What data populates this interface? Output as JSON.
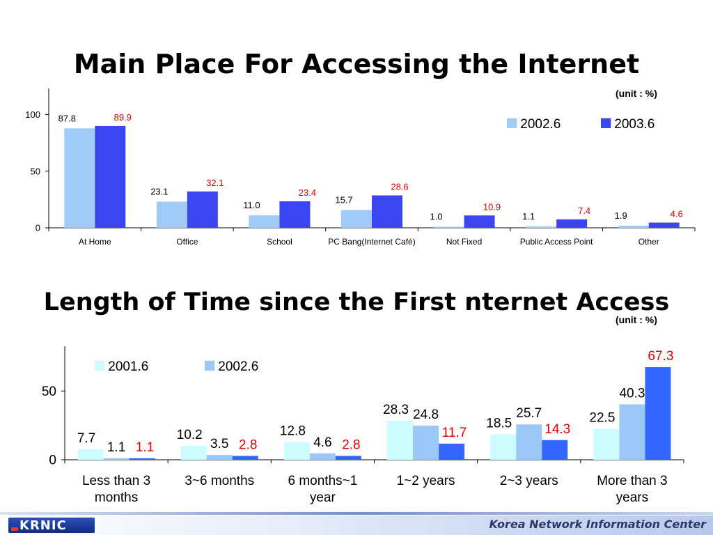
{
  "slide": {
    "title1": "Main Place For Accessing the Internet",
    "title2": "Length of Time since the First nternet Access",
    "unit1": "(unit : %)",
    "unit2": "(unit : %)",
    "footer_org": "Korea Network Information Center",
    "logo_text": "KRNIC"
  },
  "chart_data": [
    {
      "type": "bar",
      "categories": [
        "At Home",
        "Office",
        "School",
        "PC Bang(Internet Café)",
        "Not Fixed",
        "Public Access Point",
        "Other"
      ],
      "series": [
        {
          "name": "2002.6",
          "values": [
            87.8,
            23.1,
            11.0,
            15.7,
            1.0,
            1.1,
            1.9
          ],
          "color": "#9fcbf6",
          "label_color": "#000000"
        },
        {
          "name": "2003.6",
          "values": [
            89.9,
            32.1,
            23.4,
            28.6,
            10.9,
            7.4,
            4.6
          ],
          "color": "#3c46f0",
          "label_color": "#e00000"
        }
      ],
      "value_labels": [
        [
          "87.8",
          "23.1",
          "11.0",
          "15.7",
          "1.0",
          "1.1",
          "1.9"
        ],
        [
          "89.9",
          "32.1",
          "23.4",
          "28.6",
          "10.9",
          "7.4",
          "4.6"
        ]
      ],
      "yticks": [
        "0",
        "50",
        "100"
      ],
      "ytick_values": [
        0,
        50,
        100
      ],
      "ylim": [
        0,
        120
      ],
      "legend": "top-right",
      "grid": false
    },
    {
      "type": "bar",
      "categories": [
        "Less than 3 months",
        "3~6 months",
        "6 months~1 year",
        "1~2 years",
        "2~3 years",
        "More than 3 years"
      ],
      "series": [
        {
          "name": "2001.6",
          "values": [
            7.7,
            10.2,
            12.8,
            28.3,
            18.5,
            22.5
          ],
          "color": "#ccfcff",
          "label_color": "#000000"
        },
        {
          "name": "2002.6",
          "values": [
            1.1,
            3.5,
            4.6,
            24.8,
            25.7,
            40.3
          ],
          "color": "#9cc8f8",
          "label_color": "#000000"
        },
        {
          "name": "",
          "values": [
            1.1,
            2.8,
            2.8,
            11.7,
            14.3,
            67.3
          ],
          "color": "#3366ff",
          "label_color": "#e00000"
        }
      ],
      "value_labels": [
        [
          "7.7",
          "10.2",
          "12.8",
          "28.3",
          "18.5",
          "22.5"
        ],
        [
          "1.1",
          "3.5",
          "4.6",
          "24.8",
          "25.7",
          "40.3"
        ],
        [
          "1.1",
          "2.8",
          "2.8",
          "11.7",
          "14.3",
          "67.3"
        ]
      ],
      "yticks": [
        "0",
        "50"
      ],
      "ytick_values": [
        0,
        50
      ],
      "ylim": [
        0,
        80
      ],
      "legend": "top-left",
      "grid": false
    }
  ]
}
